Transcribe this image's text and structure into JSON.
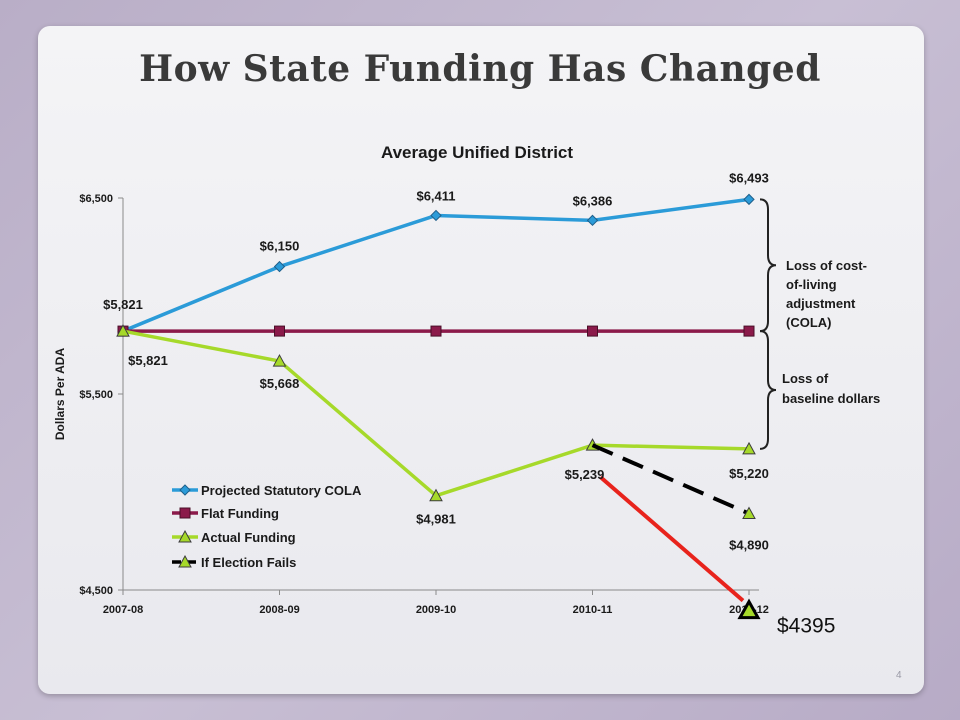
{
  "slide": {
    "title": "How State Funding Has Changed",
    "page_number": "4"
  },
  "chart_data": {
    "type": "line",
    "title": "Average Unified District",
    "ylabel": "Dollars Per ADA",
    "xlabel": "",
    "categories": [
      "2007-08",
      "2008-09",
      "2009-10",
      "2010-11",
      "2011-12"
    ],
    "ylim": [
      4500,
      6500
    ],
    "yticks": [
      4500,
      5500,
      6500
    ],
    "ytick_labels": [
      "$4,500",
      "$5,500",
      "$6,500"
    ],
    "grid": false,
    "legend_position": "lower-left",
    "series": [
      {
        "name": "Projected Statutory COLA",
        "values": [
          5821,
          6150,
          6411,
          6386,
          6493
        ],
        "labels": [
          "$5,821",
          "$6,150",
          "$6,411",
          "$6,386",
          "$6,493"
        ],
        "color": "#2b9bd8",
        "marker": "diamond",
        "dash": "solid"
      },
      {
        "name": "Flat Funding",
        "values": [
          5821,
          5821,
          5821,
          5821,
          5821
        ],
        "labels": [],
        "color": "#8b1a4a",
        "marker": "square",
        "dash": "solid"
      },
      {
        "name": "Actual Funding",
        "values": [
          5821,
          5668,
          4981,
          5239,
          5220
        ],
        "labels": [
          "$5,821",
          "$5,668",
          "$4,981",
          "$5,239",
          "$5,220"
        ],
        "color": "#a6d92a",
        "marker": "triangle",
        "dash": "solid"
      },
      {
        "name": "If Election Fails",
        "x": [
          "2010-11",
          "2011-12"
        ],
        "values": [
          5239,
          4890
        ],
        "labels": [
          "",
          "$4,890"
        ],
        "color": "#000000",
        "marker": "triangle",
        "dash": "dashed"
      }
    ],
    "annotations": {
      "cola_loss": "Loss of cost-of-living adjustment (COLA)",
      "baseline_loss": "Loss of baseline dollars",
      "cola_loss_lines": [
        "Loss of cost-",
        "of-living",
        "adjustment",
        "(COLA)"
      ],
      "baseline_loss_lines": [
        "Loss of",
        "baseline dollars"
      ],
      "extra_point": {
        "x": "2011-12",
        "value": 4395,
        "label": "$4395",
        "line_color": "#e8231c"
      }
    }
  }
}
